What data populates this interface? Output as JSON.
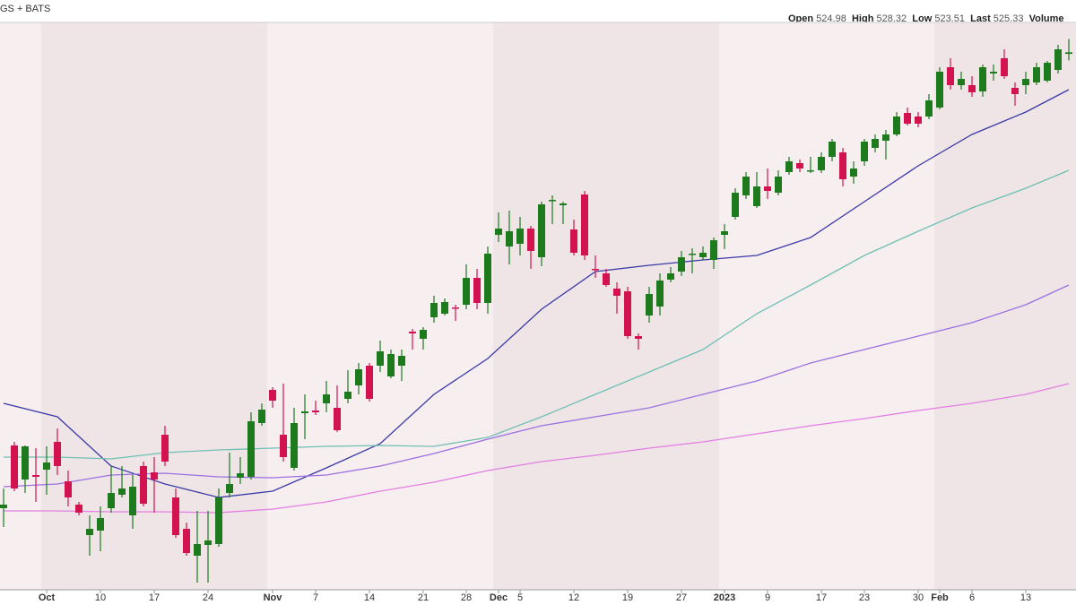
{
  "chart_data": {
    "type": "candlestick",
    "source_label": "GS + BATS",
    "ohlc_labels": [
      "Open",
      "High",
      "Low",
      "Last",
      "Volume"
    ],
    "categories": [
      null,
      null,
      null,
      null,
      "Oct",
      null,
      null,
      null,
      null,
      "10",
      null,
      null,
      null,
      null,
      "17",
      null,
      null,
      null,
      null,
      "24",
      null,
      null,
      null,
      null,
      null,
      "Nov",
      null,
      null,
      null,
      "7",
      null,
      null,
      null,
      null,
      "14",
      null,
      null,
      null,
      null,
      "21",
      null,
      null,
      null,
      "28",
      null,
      null,
      "Dec",
      null,
      "5",
      null,
      null,
      null,
      null,
      "12",
      null,
      null,
      null,
      null,
      "19",
      null,
      null,
      null,
      null,
      "27",
      null,
      null,
      null,
      "2023",
      null,
      null,
      null,
      "9",
      null,
      null,
      null,
      null,
      "17",
      null,
      null,
      null,
      "23",
      null,
      null,
      null,
      null,
      "30",
      null,
      "Feb",
      null,
      null,
      "6",
      null,
      null,
      null,
      null,
      "13",
      null,
      null,
      null,
      null
    ],
    "open": [
      423.6,
      437.6,
      430,
      431,
      432.2,
      438.4,
      429.6,
      424.4,
      417.6,
      418.6,
      423.6,
      426.6,
      422,
      433,
      431.6,
      440,
      426,
      419,
      413,
      415.4,
      415.6,
      427,
      430.4,
      430.6,
      442.6,
      450,
      440,
      432.6,
      444.8,
      445.4,
      447,
      446,
      448,
      451,
      455.4,
      455.4,
      453,
      455.4,
      463,
      461.4,
      466.2,
      467,
      468.4,
      469,
      475,
      469.4,
      484.6,
      482,
      482.6,
      486,
      479.6,
      492.2,
      491.2,
      485.8,
      493.6,
      477,
      476,
      472.6,
      472,
      462,
      466.6,
      468.6,
      474.6,
      476.4,
      480.2,
      479.6,
      479,
      484.6,
      488.6,
      493.4,
      491,
      495.4,
      494,
      498.6,
      500.6,
      498.8,
      499,
      502,
      503,
      497.6,
      501,
      504,
      505.6,
      507,
      511.8,
      511,
      511,
      513,
      522,
      518,
      518,
      516.6,
      520.6,
      524,
      517.4,
      518,
      518.6,
      519,
      521.4,
      524.98
    ],
    "high": [
      428,
      438.4,
      437.6,
      437,
      437.4,
      441.4,
      432,
      425,
      422,
      424,
      433,
      433,
      431,
      434,
      435,
      442,
      428,
      420.4,
      423,
      423,
      428,
      436,
      435,
      445,
      447,
      450.6,
      451.4,
      446,
      449,
      447.6,
      452,
      451,
      454.4,
      456,
      456,
      461,
      459,
      459,
      463.6,
      464,
      471,
      470.4,
      469,
      478,
      477,
      482,
      489.6,
      490,
      488.6,
      486.6,
      492,
      493.4,
      492,
      488,
      494.4,
      480,
      477,
      474,
      473,
      462.6,
      473,
      476,
      477.4,
      481,
      481.6,
      482,
      484,
      487,
      495,
      498.6,
      498.6,
      499.4,
      499,
      502,
      501.4,
      502,
      503,
      506,
      504,
      501,
      506,
      507,
      508,
      512,
      513,
      512,
      516,
      522,
      524,
      521,
      520,
      522.6,
      522.6,
      526,
      518.6,
      521,
      523,
      523.4,
      527,
      528.32
    ],
    "low": [
      419.4,
      427.4,
      427,
      425,
      426.6,
      431,
      424,
      422,
      413,
      414,
      422.6,
      426,
      419,
      424,
      422.6,
      433,
      417,
      413,
      407,
      407,
      415,
      426,
      429,
      430,
      442,
      446,
      434,
      432,
      439,
      444.4,
      445,
      440.6,
      447,
      449,
      447.4,
      454,
      452.6,
      452,
      459,
      459,
      465,
      466.6,
      465.4,
      468,
      468,
      467,
      483,
      478,
      480,
      477,
      477.6,
      487,
      487,
      480,
      479,
      475,
      473,
      467,
      461.4,
      459,
      465,
      466.6,
      474,
      475.4,
      476,
      479,
      477,
      481.4,
      488,
      492.6,
      490.6,
      492.6,
      493.4,
      498,
      498.6,
      498.4,
      498.4,
      501,
      495.4,
      496,
      500,
      503,
      501.4,
      506.6,
      509,
      508.6,
      510.4,
      512.6,
      517,
      517,
      515.4,
      515.4,
      519,
      519.4,
      513.4,
      516,
      518,
      518.6,
      520.6,
      523.51
    ],
    "close": [
      424.4,
      428,
      437.4,
      430.6,
      433.8,
      433,
      426,
      422.6,
      419,
      421.4,
      427,
      428,
      428.4,
      424.6,
      430,
      434,
      417.6,
      413.6,
      415.6,
      416.4,
      426,
      429,
      431.4,
      443,
      445.6,
      447.6,
      435,
      442.6,
      445.2,
      445,
      449,
      441,
      449.6,
      454.6,
      448,
      458.6,
      458,
      457.6,
      462.6,
      463.4,
      469.4,
      469.6,
      468.2,
      475,
      469.4,
      480.4,
      486,
      485.4,
      486,
      481,
      491.4,
      492.4,
      491.6,
      480.6,
      480,
      476.8,
      473.4,
      471,
      462,
      461.4,
      471.4,
      474.4,
      476,
      479.6,
      480.4,
      480.6,
      483.4,
      485.4,
      494,
      497.6,
      495.4,
      494.4,
      497.6,
      501,
      499.4,
      499,
      502,
      505.4,
      497,
      499.4,
      505.4,
      506,
      507,
      511,
      509.4,
      509.4,
      514.6,
      521,
      518,
      519.4,
      516.4,
      522,
      521,
      520,
      516,
      519.4,
      522,
      523,
      526,
      525.33
    ],
    "up_color": "#1d7a1d",
    "down_color": "#d3134f",
    "series": [
      {
        "color": "#3a3aa6",
        "x": [
          0,
          5,
          10,
          15,
          20,
          25,
          30,
          35,
          40,
          45,
          50,
          55,
          60,
          65,
          70,
          75,
          80,
          85,
          90,
          95,
          99
        ],
        "values": [
          447,
          444,
          433,
          429,
          426,
          427.4,
          432.6,
          438,
          449,
          457,
          468,
          476.4,
          477.8,
          479,
          480,
          484,
          492,
          500,
          507,
          512,
          517
        ]
      },
      {
        "color": "#6fc0b2",
        "x": [
          0,
          5,
          10,
          15,
          20,
          25,
          30,
          35,
          40,
          45,
          50,
          55,
          60,
          65,
          70,
          75,
          80,
          85,
          90,
          95,
          99
        ],
        "values": [
          435,
          435,
          434.6,
          436,
          436.6,
          437,
          437.4,
          437.6,
          437.4,
          439.4,
          444,
          449,
          454,
          459,
          467,
          473.4,
          480,
          485.4,
          490.6,
          495,
          499
        ]
      },
      {
        "color": "#9c70e0",
        "x": [
          0,
          5,
          10,
          15,
          20,
          25,
          30,
          35,
          40,
          45,
          50,
          55,
          60,
          65,
          70,
          75,
          80,
          85,
          90,
          95,
          99
        ],
        "values": [
          428.4,
          429,
          431,
          431.4,
          430.6,
          430.4,
          431,
          433,
          435.8,
          439,
          442,
          444,
          446,
          449,
          452,
          456,
          459,
          462,
          465,
          469,
          473.4
        ]
      },
      {
        "color": "#e37fe3",
        "x": [
          0,
          5,
          10,
          15,
          20,
          25,
          30,
          35,
          40,
          45,
          50,
          55,
          60,
          65,
          70,
          75,
          80,
          85,
          90,
          95,
          99
        ],
        "values": [
          423,
          423,
          422.8,
          422.8,
          422.6,
          423.4,
          425,
          427.4,
          429.4,
          432,
          434,
          435.4,
          437,
          438.4,
          440.2,
          442,
          443.6,
          445.4,
          447,
          449,
          451.4
        ]
      }
    ],
    "ylim": [
      406,
      532
    ]
  }
}
